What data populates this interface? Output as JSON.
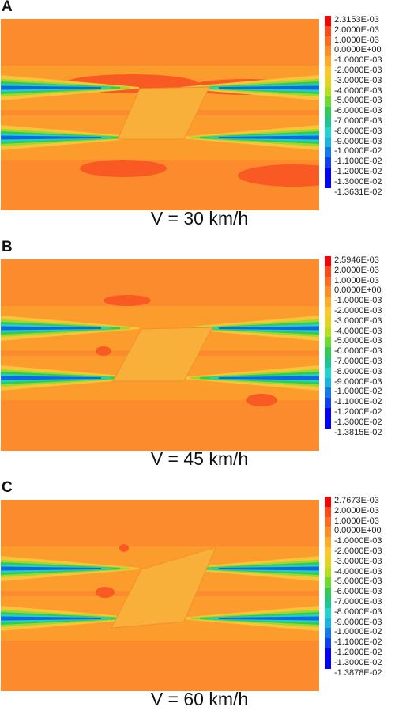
{
  "palette": [
    "#ff0000",
    "#ff4a18",
    "#ff6b21",
    "#ff8c27",
    "#ffab2c",
    "#ffc72b",
    "#e6d11b",
    "#b4e01e",
    "#6ddc2c",
    "#2ecc52",
    "#1fc58f",
    "#1fd6cc",
    "#19b3e6",
    "#1478ee",
    "#1040f2",
    "#0000ff"
  ],
  "plot_colors": {
    "base": "#fb8b2c",
    "hot": "#f95a23",
    "warm": "#fbab2d",
    "yellow": "#f8c43a",
    "lime": "#9bd830",
    "green": "#2fcc55",
    "cyan": "#21d3c6",
    "blue": "#1466e8",
    "slab": "#f8b03a"
  },
  "panels": [
    {
      "label": "A",
      "caption": "V = 30 km/h",
      "legend": [
        "2.3153E-03",
        "2.0000E-03",
        "1.0000E-03",
        "0.0000E+00",
        "-1.0000E-03",
        "-2.0000E-03",
        "-3.0000E-03",
        "-4.0000E-03",
        "-5.0000E-03",
        "-6.0000E-03",
        "-7.0000E-03",
        "-8.0000E-03",
        "-9.0000E-03",
        "-1.0000E-02",
        "-1.1000E-02",
        "-1.2000E-02",
        "-1.3000E-02",
        "-1.3631E-02"
      ]
    },
    {
      "label": "B",
      "caption": "V = 45 km/h",
      "legend": [
        "2.5946E-03",
        "2.0000E-03",
        "1.0000E-03",
        "0.0000E+00",
        "-1.0000E-03",
        "-2.0000E-03",
        "-3.0000E-03",
        "-4.0000E-03",
        "-5.0000E-03",
        "-6.0000E-03",
        "-7.0000E-03",
        "-8.0000E-03",
        "-9.0000E-03",
        "-1.0000E-02",
        "-1.1000E-02",
        "-1.2000E-02",
        "-1.3000E-02",
        "-1.3815E-02"
      ]
    },
    {
      "label": "C",
      "caption": "V = 60 km/h",
      "legend": [
        "2.7673E-03",
        "2.0000E-03",
        "1.0000E-03",
        "0.0000E+00",
        "-1.0000E-03",
        "-2.0000E-03",
        "-3.0000E-03",
        "-4.0000E-03",
        "-5.0000E-03",
        "-6.0000E-03",
        "-7.0000E-03",
        "-8.0000E-03",
        "-9.0000E-03",
        "-1.0000E-02",
        "-1.1000E-02",
        "-1.2000E-02",
        "-1.3000E-02",
        "-1.3878E-02"
      ]
    }
  ]
}
